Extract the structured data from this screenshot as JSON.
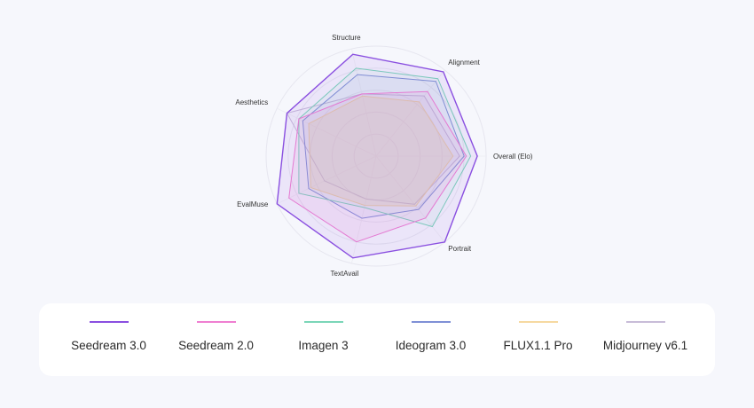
{
  "chart_data": {
    "type": "radar",
    "axes": [
      "Overall (Elo)",
      "Portrait",
      "TextAvail",
      "EvalMuse",
      "Aesthetics",
      "Structure",
      "Alignment"
    ],
    "rlim": [
      0,
      1
    ],
    "grid": true,
    "legend_position": "bottom",
    "series": [
      {
        "name": "Seedream 3.0",
        "color": "#8a4fe0",
        "fill_opacity": 0.1,
        "values": [
          0.92,
          1.0,
          0.95,
          1.0,
          0.9,
          0.95,
          0.98
        ]
      },
      {
        "name": "Seedream 2.0",
        "color": "#ef7fd1",
        "fill_opacity": 0.12,
        "values": [
          0.82,
          0.72,
          0.8,
          0.88,
          0.78,
          0.58,
          0.75
        ]
      },
      {
        "name": "Imagen 3",
        "color": "#7bd6b8",
        "fill_opacity": 0.08,
        "values": [
          0.86,
          0.82,
          0.48,
          0.78,
          0.78,
          0.82,
          0.9
        ]
      },
      {
        "name": "Ideogram 3.0",
        "color": "#7f90d6",
        "fill_opacity": 0.06,
        "values": [
          0.8,
          0.62,
          0.58,
          0.68,
          0.74,
          0.76,
          0.87
        ]
      },
      {
        "name": "FLUX1.1 Pro",
        "color": "#f6d9a1",
        "fill_opacity": 0.3,
        "values": [
          0.7,
          0.58,
          0.46,
          0.66,
          0.68,
          0.56,
          0.63
        ]
      },
      {
        "name": "Midjourney v6.1",
        "color": "#c8bcd8",
        "fill_opacity": 0.06,
        "values": [
          0.76,
          0.56,
          0.4,
          0.52,
          0.9,
          0.58,
          0.7
        ]
      }
    ]
  },
  "legend": {
    "items": [
      {
        "label": "Seedream 3.0",
        "color": "#8a4fe0"
      },
      {
        "label": "Seedream 2.0",
        "color": "#ef7fd1"
      },
      {
        "label": "Imagen 3",
        "color": "#7bd6b8"
      },
      {
        "label": "Ideogram 3.0",
        "color": "#7f90d6"
      },
      {
        "label": "FLUX1.1 Pro",
        "color": "#f6d9a1"
      },
      {
        "label": "Midjourney v6.1",
        "color": "#c8bcd8"
      }
    ]
  }
}
